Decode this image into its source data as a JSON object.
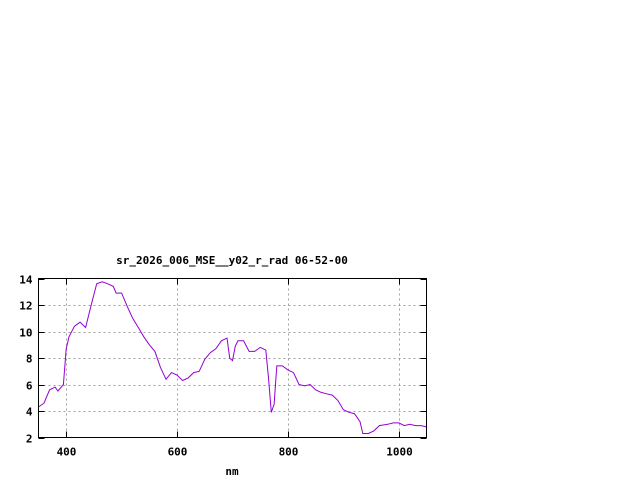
{
  "chart_data": {
    "type": "line",
    "title": "sr_2026_006_MSE__y02_r_rad 06-52-00",
    "xlabel": "nm",
    "ylabel": "",
    "xlim": [
      350,
      1050
    ],
    "ylim": [
      2,
      14
    ],
    "xticks": [
      400,
      600,
      800,
      1000
    ],
    "yticks": [
      2,
      4,
      6,
      8,
      10,
      12,
      14
    ],
    "grid": true,
    "line_color": "#9400d3",
    "series": [
      {
        "x": [
          350,
          360,
          370,
          380,
          385,
          395,
          400,
          405,
          415,
          425,
          435,
          445,
          455,
          465,
          475,
          485,
          490,
          500,
          510,
          520,
          530,
          540,
          550,
          560,
          570,
          580,
          590,
          600,
          610,
          620,
          630,
          640,
          650,
          660,
          670,
          680,
          690,
          695,
          700,
          705,
          710,
          720,
          730,
          740,
          750,
          760,
          765,
          770,
          775,
          780,
          790,
          800,
          810,
          820,
          830,
          840,
          850,
          860,
          870,
          880,
          890,
          900,
          910,
          920,
          930,
          935,
          945,
          955,
          965,
          980,
          990,
          1000,
          1010,
          1020,
          1030,
          1040,
          1050
        ],
        "y": [
          4.3,
          4.6,
          5.6,
          5.8,
          5.5,
          6.0,
          8.7,
          9.6,
          10.4,
          10.7,
          10.3,
          12.0,
          13.6,
          13.75,
          13.6,
          13.4,
          12.9,
          12.9,
          11.9,
          11.0,
          10.3,
          9.6,
          9.0,
          8.5,
          7.3,
          6.4,
          6.9,
          6.7,
          6.3,
          6.5,
          6.9,
          7.0,
          7.9,
          8.4,
          8.7,
          9.3,
          9.5,
          8.0,
          7.8,
          8.9,
          9.3,
          9.3,
          8.5,
          8.5,
          8.8,
          8.6,
          6.5,
          3.9,
          4.5,
          7.4,
          7.4,
          7.1,
          6.9,
          6.0,
          5.9,
          6.0,
          5.6,
          5.4,
          5.3,
          5.2,
          4.8,
          4.1,
          3.9,
          3.8,
          3.2,
          2.3,
          2.3,
          2.5,
          2.9,
          3.0,
          3.1,
          3.1,
          2.9,
          3.0,
          2.9,
          2.9,
          2.8
        ]
      }
    ]
  }
}
